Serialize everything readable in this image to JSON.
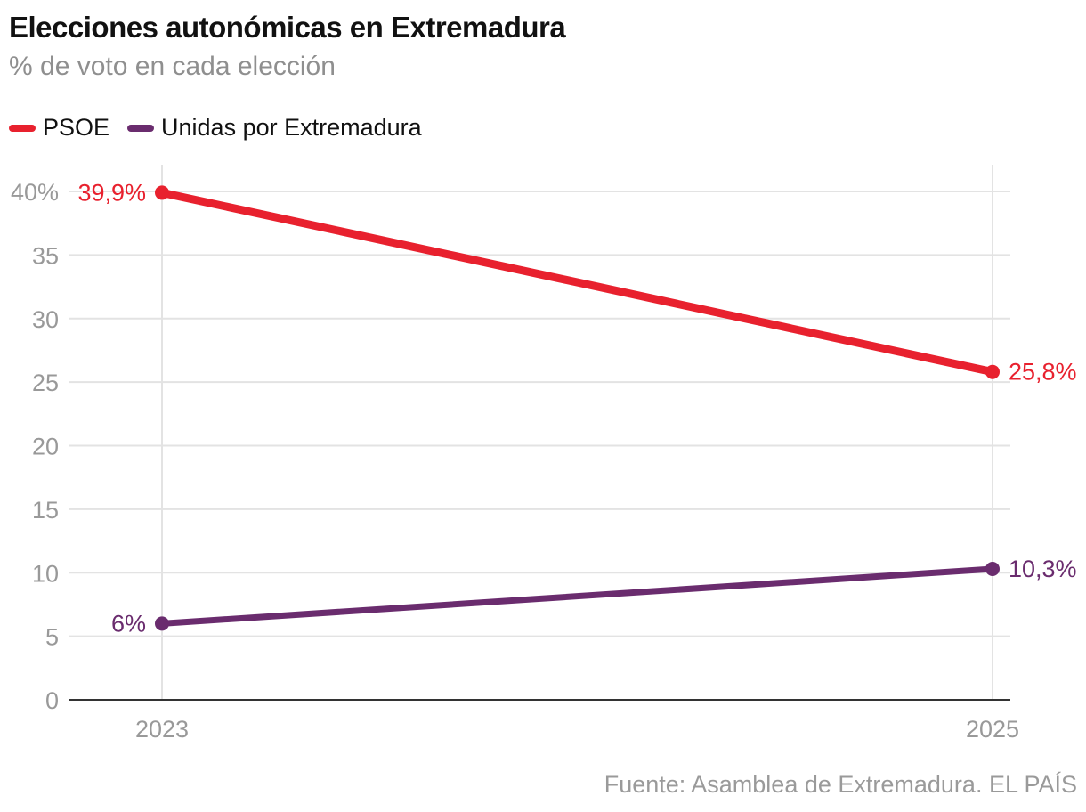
{
  "header": {
    "title": "Elecciones autonómicas en Extremadura",
    "subtitle": "% de voto en cada elección"
  },
  "legend": {
    "items": [
      {
        "label": "PSOE",
        "color": "#e8212e"
      },
      {
        "label": "Unidas por Extremadura",
        "color": "#6a2c6e"
      }
    ]
  },
  "source": "Fuente: Asamblea de Extremadura. EL PAÍS",
  "chart_data": {
    "type": "line",
    "x": [
      "2023",
      "2025"
    ],
    "series": [
      {
        "name": "PSOE",
        "values": [
          39.9,
          25.8
        ],
        "labels": [
          "39,9%",
          "25,8%"
        ],
        "color": "#e8212e"
      },
      {
        "name": "Unidas por Extremadura",
        "values": [
          6,
          10.3
        ],
        "labels": [
          "6%",
          "10,3%"
        ],
        "color": "#6a2c6e"
      }
    ],
    "ylim": [
      0,
      40
    ],
    "yticks": [
      0,
      5,
      10,
      15,
      20,
      25,
      30,
      35,
      40
    ],
    "ytick_labels": [
      "0",
      "5",
      "10",
      "15",
      "20",
      "25",
      "30",
      "35",
      "40%"
    ],
    "grid": true,
    "legend_position": "top-left"
  }
}
